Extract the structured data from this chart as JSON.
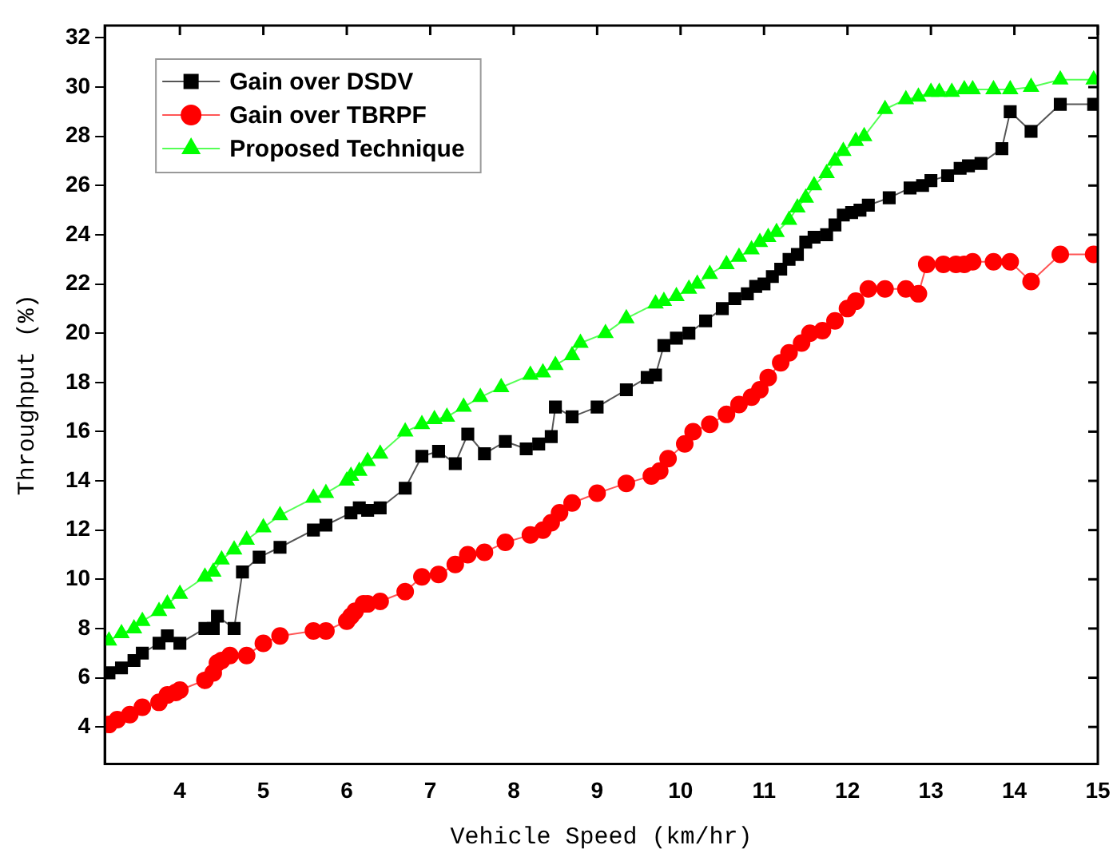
{
  "chart_data": {
    "type": "line",
    "xlabel": "Vehicle Speed (km/hr)",
    "ylabel": "Throughput (%)",
    "xlim": [
      3.1,
      15
    ],
    "xticks": [
      4,
      5,
      6,
      7,
      8,
      9,
      10,
      11,
      12,
      13,
      14,
      15
    ],
    "ylim": [
      2.5,
      32.5
    ],
    "yticks": [
      4,
      6,
      8,
      10,
      12,
      14,
      16,
      18,
      20,
      22,
      24,
      26,
      28,
      30,
      32
    ],
    "grid": false,
    "legend": "top left",
    "line_style": "solid",
    "series": [
      {
        "name": "Gain over DSDV",
        "color": "#000000",
        "marker": "square",
        "x": [
          3.15,
          3.3,
          3.45,
          3.55,
          3.75,
          3.85,
          4.0,
          4.3,
          4.4,
          4.45,
          4.65,
          4.75,
          4.95,
          5.2,
          5.6,
          5.75,
          6.05,
          6.15,
          6.25,
          6.4,
          6.7,
          6.9,
          7.1,
          7.3,
          7.45,
          7.65,
          7.9,
          8.15,
          8.3,
          8.45,
          8.5,
          8.7,
          9.0,
          9.35,
          9.6,
          9.7,
          9.8,
          9.95,
          10.1,
          10.3,
          10.5,
          10.65,
          10.8,
          10.9,
          11.0,
          11.1,
          11.2,
          11.3,
          11.4,
          11.5,
          11.6,
          11.75,
          11.85,
          11.95,
          12.05,
          12.15,
          12.25,
          12.5,
          12.75,
          12.9,
          13.0,
          13.2,
          13.35,
          13.45,
          13.6,
          13.85,
          13.95,
          14.2,
          14.55,
          14.95
        ],
        "values": [
          6.2,
          6.4,
          6.7,
          7.0,
          7.4,
          7.7,
          7.4,
          8.0,
          8.0,
          8.5,
          8.0,
          10.3,
          10.9,
          11.3,
          12.0,
          12.2,
          12.7,
          12.9,
          12.8,
          12.9,
          13.7,
          15.0,
          15.2,
          14.7,
          15.9,
          15.1,
          15.6,
          15.3,
          15.5,
          15.8,
          17.0,
          16.6,
          17.0,
          17.7,
          18.2,
          18.3,
          19.5,
          19.8,
          20.0,
          20.5,
          21.0,
          21.4,
          21.6,
          21.9,
          22.0,
          22.3,
          22.6,
          23.0,
          23.2,
          23.7,
          23.9,
          24.0,
          24.4,
          24.8,
          24.9,
          25.0,
          25.2,
          25.5,
          25.9,
          26.0,
          26.2,
          26.4,
          26.7,
          26.8,
          26.9,
          27.5,
          29.0,
          28.2,
          29.3,
          29.3
        ]
      },
      {
        "name": "Gain over TBRPF",
        "color": "#ff0000",
        "marker": "circle",
        "x": [
          3.15,
          3.25,
          3.4,
          3.55,
          3.75,
          3.85,
          3.95,
          4.0,
          4.3,
          4.4,
          4.45,
          4.5,
          4.6,
          4.8,
          5.0,
          5.2,
          5.6,
          5.75,
          6.0,
          6.05,
          6.1,
          6.2,
          6.25,
          6.4,
          6.7,
          6.9,
          7.1,
          7.3,
          7.45,
          7.65,
          7.9,
          8.2,
          8.35,
          8.45,
          8.55,
          8.7,
          9.0,
          9.35,
          9.65,
          9.75,
          9.85,
          10.05,
          10.15,
          10.35,
          10.55,
          10.7,
          10.85,
          10.95,
          11.05,
          11.2,
          11.3,
          11.45,
          11.55,
          11.7,
          11.85,
          12.0,
          12.1,
          12.25,
          12.45,
          12.7,
          12.85,
          12.95,
          13.15,
          13.3,
          13.4,
          13.5,
          13.75,
          13.95,
          14.2,
          14.55,
          14.95
        ],
        "values": [
          4.1,
          4.3,
          4.5,
          4.8,
          5.0,
          5.3,
          5.4,
          5.5,
          5.9,
          6.2,
          6.6,
          6.7,
          6.9,
          6.9,
          7.4,
          7.7,
          7.9,
          7.9,
          8.3,
          8.5,
          8.7,
          9.0,
          9.0,
          9.1,
          9.5,
          10.1,
          10.2,
          10.6,
          11.0,
          11.1,
          11.5,
          11.8,
          12.0,
          12.3,
          12.7,
          13.1,
          13.5,
          13.9,
          14.2,
          14.4,
          14.9,
          15.5,
          16.0,
          16.3,
          16.7,
          17.1,
          17.4,
          17.7,
          18.2,
          18.8,
          19.2,
          19.6,
          20.0,
          20.1,
          20.5,
          21.0,
          21.3,
          21.8,
          21.8,
          21.8,
          21.6,
          22.8,
          22.8,
          22.8,
          22.8,
          22.9,
          22.9,
          22.9,
          22.1,
          23.2,
          23.2
        ]
      },
      {
        "name": "Proposed Technique",
        "color": "#00ff00",
        "marker": "triangle",
        "x": [
          3.15,
          3.3,
          3.45,
          3.55,
          3.75,
          3.85,
          4.0,
          4.3,
          4.4,
          4.5,
          4.65,
          4.8,
          5.0,
          5.2,
          5.6,
          5.75,
          6.0,
          6.05,
          6.15,
          6.25,
          6.4,
          6.7,
          6.9,
          7.05,
          7.2,
          7.4,
          7.6,
          7.85,
          8.2,
          8.35,
          8.5,
          8.7,
          8.8,
          9.1,
          9.35,
          9.7,
          9.8,
          9.95,
          10.1,
          10.2,
          10.35,
          10.55,
          10.7,
          10.85,
          10.95,
          11.05,
          11.15,
          11.3,
          11.4,
          11.5,
          11.6,
          11.75,
          11.85,
          11.95,
          12.1,
          12.2,
          12.45,
          12.7,
          12.85,
          13.0,
          13.1,
          13.25,
          13.4,
          13.5,
          13.75,
          13.95,
          14.2,
          14.55,
          14.95
        ],
        "values": [
          7.5,
          7.8,
          8.0,
          8.3,
          8.7,
          9.0,
          9.4,
          10.1,
          10.3,
          10.8,
          11.2,
          11.6,
          12.1,
          12.6,
          13.3,
          13.5,
          14.0,
          14.2,
          14.4,
          14.8,
          15.1,
          16.0,
          16.3,
          16.5,
          16.6,
          17.0,
          17.4,
          17.8,
          18.3,
          18.4,
          18.7,
          19.1,
          19.6,
          20.0,
          20.6,
          21.2,
          21.3,
          21.5,
          21.8,
          22.0,
          22.4,
          22.8,
          23.1,
          23.4,
          23.7,
          23.9,
          24.1,
          24.6,
          25.1,
          25.5,
          26.0,
          26.5,
          27.0,
          27.4,
          27.8,
          28.0,
          29.1,
          29.5,
          29.6,
          29.8,
          29.8,
          29.8,
          29.9,
          29.9,
          29.9,
          29.9,
          30.0,
          30.3,
          30.3
        ]
      }
    ]
  }
}
